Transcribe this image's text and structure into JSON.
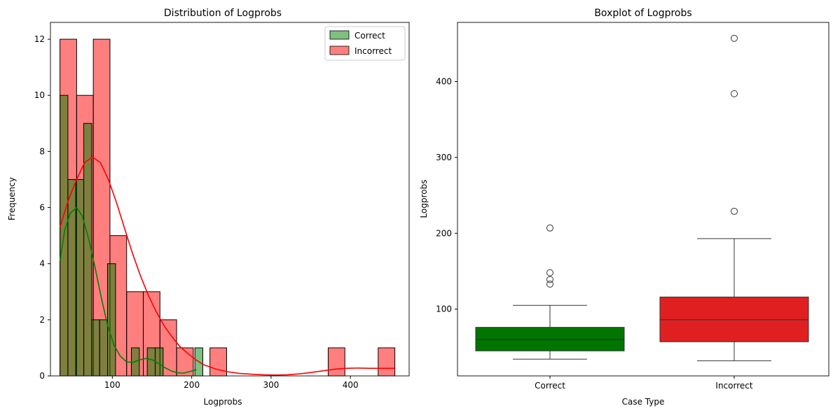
{
  "chart_data": [
    {
      "type": "histogram",
      "title": "Distribution of Logprobs",
      "xlabel": "Logprobs",
      "ylabel": "Frequency",
      "xlim": [
        22,
        474
      ],
      "ylim": [
        0,
        12.6
      ],
      "xticks": [
        100,
        200,
        300,
        400
      ],
      "yticks": [
        0,
        2,
        4,
        6,
        8,
        10,
        12
      ],
      "legend": {
        "position": "top-right",
        "entries": [
          "Correct",
          "Incorrect"
        ]
      },
      "series": [
        {
          "name": "Incorrect",
          "color": "#ff0000",
          "bins": [
            {
              "x0": 34,
              "x1": 55,
              "count": 12
            },
            {
              "x0": 55,
              "x1": 76,
              "count": 10
            },
            {
              "x0": 76,
              "x1": 97,
              "count": 12
            },
            {
              "x0": 97,
              "x1": 118,
              "count": 5
            },
            {
              "x0": 118,
              "x1": 139,
              "count": 3
            },
            {
              "x0": 139,
              "x1": 160,
              "count": 3
            },
            {
              "x0": 160,
              "x1": 181,
              "count": 2
            },
            {
              "x0": 181,
              "x1": 202,
              "count": 1
            },
            {
              "x0": 223,
              "x1": 244,
              "count": 1
            },
            {
              "x0": 372,
              "x1": 393,
              "count": 1
            },
            {
              "x0": 435,
              "x1": 456,
              "count": 1
            }
          ],
          "kde": [
            [
              34,
              5.3
            ],
            [
              45,
              6.3
            ],
            [
              55,
              7.0
            ],
            [
              65,
              7.6
            ],
            [
              75,
              7.8
            ],
            [
              85,
              7.6
            ],
            [
              95,
              7.0
            ],
            [
              105,
              6.2
            ],
            [
              115,
              5.3
            ],
            [
              125,
              4.4
            ],
            [
              135,
              3.6
            ],
            [
              145,
              2.9
            ],
            [
              155,
              2.3
            ],
            [
              165,
              1.8
            ],
            [
              175,
              1.4
            ],
            [
              185,
              1.05
            ],
            [
              195,
              0.8
            ],
            [
              205,
              0.58
            ],
            [
              215,
              0.4
            ],
            [
              230,
              0.25
            ],
            [
              245,
              0.15
            ],
            [
              260,
              0.09
            ],
            [
              275,
              0.06
            ],
            [
              290,
              0.04
            ],
            [
              305,
              0.03
            ],
            [
              320,
              0.04
            ],
            [
              335,
              0.07
            ],
            [
              350,
              0.12
            ],
            [
              365,
              0.18
            ],
            [
              380,
              0.24
            ],
            [
              395,
              0.27
            ],
            [
              410,
              0.28
            ],
            [
              425,
              0.27
            ],
            [
              440,
              0.27
            ],
            [
              456,
              0.27
            ]
          ]
        },
        {
          "name": "Correct",
          "color": "#008000",
          "bins": [
            {
              "x0": 34,
              "x1": 44,
              "count": 10
            },
            {
              "x0": 44,
              "x1": 54,
              "count": 7
            },
            {
              "x0": 54,
              "x1": 64,
              "count": 7
            },
            {
              "x0": 64,
              "x1": 74,
              "count": 9
            },
            {
              "x0": 74,
              "x1": 84,
              "count": 2
            },
            {
              "x0": 84,
              "x1": 94,
              "count": 2
            },
            {
              "x0": 94,
              "x1": 104,
              "count": 4
            },
            {
              "x0": 124,
              "x1": 134,
              "count": 1
            },
            {
              "x0": 144,
              "x1": 154,
              "count": 1
            },
            {
              "x0": 154,
              "x1": 164,
              "count": 1
            },
            {
              "x0": 204,
              "x1": 214,
              "count": 1
            }
          ],
          "kde": [
            [
              34,
              4.1
            ],
            [
              40,
              5.2
            ],
            [
              47,
              5.8
            ],
            [
              55,
              6.0
            ],
            [
              62,
              5.7
            ],
            [
              70,
              4.9
            ],
            [
              78,
              3.9
            ],
            [
              86,
              2.8
            ],
            [
              94,
              1.8
            ],
            [
              102,
              1.1
            ],
            [
              110,
              0.7
            ],
            [
              118,
              0.5
            ],
            [
              126,
              0.48
            ],
            [
              134,
              0.57
            ],
            [
              142,
              0.62
            ],
            [
              150,
              0.58
            ],
            [
              158,
              0.45
            ],
            [
              166,
              0.3
            ],
            [
              174,
              0.18
            ],
            [
              182,
              0.11
            ],
            [
              190,
              0.1
            ],
            [
              198,
              0.16
            ],
            [
              206,
              0.22
            ]
          ]
        }
      ]
    },
    {
      "type": "boxplot",
      "title": "Boxplot of Logprobs",
      "xlabel": "Case Type",
      "ylabel": "Logprobs",
      "ylim": [
        12,
        478
      ],
      "yticks": [
        100,
        200,
        300,
        400
      ],
      "categories": [
        "Correct",
        "Incorrect"
      ],
      "boxes": [
        {
          "name": "Correct",
          "color": "#007500",
          "whisker_low": 34,
          "q1": 45,
          "median": 60,
          "q3": 76,
          "whisker_high": 105,
          "outliers": [
            133,
            139,
            148,
            207
          ]
        },
        {
          "name": "Incorrect",
          "color": "#e02020",
          "whisker_low": 32,
          "q1": 57,
          "median": 86,
          "q3": 116,
          "whisker_high": 193,
          "outliers": [
            229,
            384,
            457
          ]
        }
      ]
    }
  ]
}
